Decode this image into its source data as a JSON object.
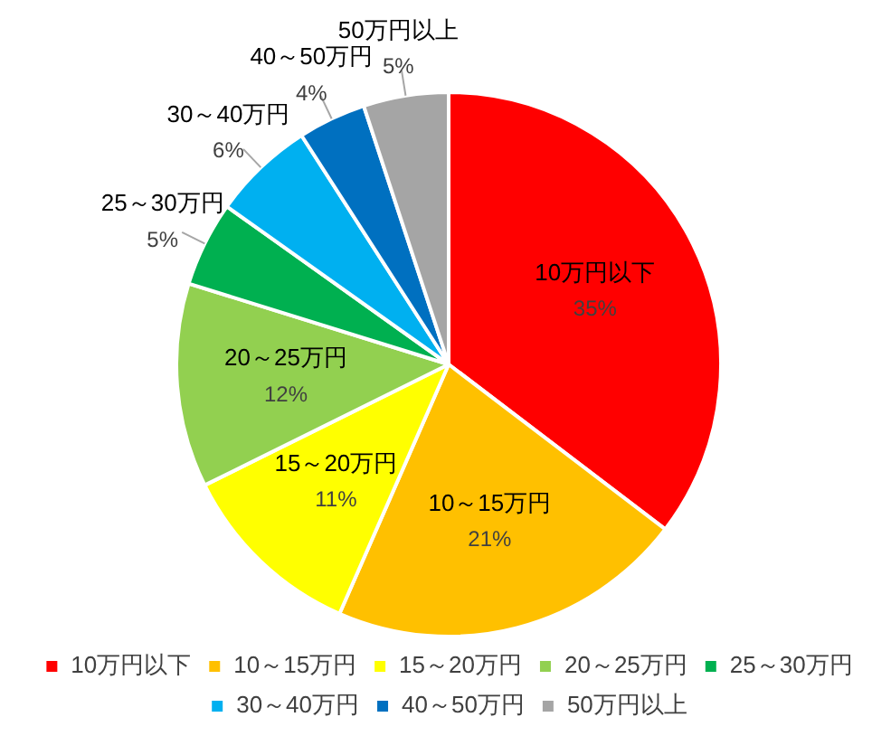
{
  "chart_data": {
    "type": "pie",
    "categories": [
      "10万円以下",
      "10～15万円",
      "15～20万円",
      "20～25万円",
      "25～30万円",
      "30～40万円",
      "40～50万円",
      "50万円以上"
    ],
    "values": [
      35,
      21,
      11,
      12,
      5,
      6,
      4,
      5
    ],
    "value_labels": [
      "35%",
      "21%",
      "11%",
      "12%",
      "5%",
      "6%",
      "4%",
      "5%"
    ],
    "colors": [
      "#ff0000",
      "#ffc000",
      "#ffff00",
      "#92d050",
      "#00b050",
      "#00b0f0",
      "#0070c0",
      "#a5a5a5"
    ],
    "legend": "bottom"
  }
}
